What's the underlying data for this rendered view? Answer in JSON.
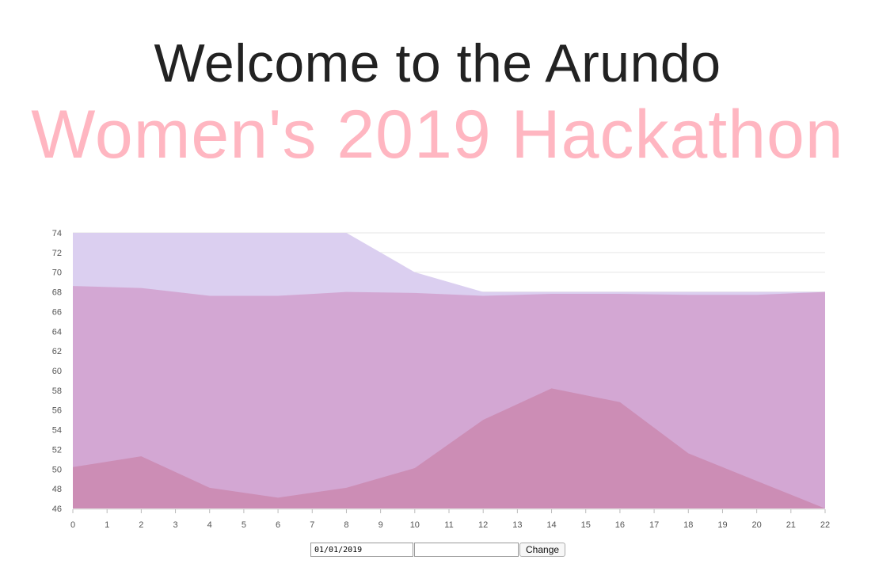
{
  "header": {
    "line1": "Welcome to the Arundo",
    "line2": "Women's 2019 Hackathon"
  },
  "colors": {
    "line1": "#222222",
    "line2": "#ffb6c1",
    "series_top": "#dbcff0",
    "series_mid": "#d3a7d3",
    "series_bottom": "#cc8db5",
    "grid": "#e6e6e6"
  },
  "chart_data": {
    "type": "area",
    "title": "",
    "xlabel": "",
    "ylabel": "",
    "xlim": [
      0,
      22
    ],
    "ylim": [
      46,
      74
    ],
    "x_ticks": [
      0,
      1,
      2,
      3,
      4,
      5,
      6,
      7,
      8,
      9,
      10,
      11,
      12,
      13,
      14,
      15,
      16,
      17,
      18,
      19,
      20,
      21,
      22
    ],
    "y_ticks": [
      46,
      48,
      50,
      52,
      54,
      56,
      58,
      60,
      62,
      64,
      66,
      68,
      70,
      72,
      74
    ],
    "grid": true,
    "legend": "none",
    "series": [
      {
        "color": "#dbcff0",
        "x": [
          0,
          2,
          4,
          6,
          8,
          10,
          12,
          14,
          16,
          18,
          20,
          22
        ],
        "values": [
          75,
          75,
          75,
          75,
          74,
          70,
          68,
          68,
          68,
          68,
          68,
          68
        ]
      },
      {
        "color": "#d3a7d3",
        "x": [
          0,
          2,
          4,
          6,
          8,
          10,
          12,
          14,
          16,
          18,
          20,
          22
        ],
        "values": [
          68.6,
          68.4,
          67.6,
          67.6,
          68.0,
          67.9,
          67.6,
          67.8,
          67.8,
          67.7,
          67.7,
          68.0
        ]
      },
      {
        "color": "#cc8db5",
        "x": [
          0,
          2,
          4,
          6,
          8,
          10,
          12,
          14,
          16,
          18,
          20,
          22
        ],
        "values": [
          50.2,
          51.3,
          48.1,
          47.1,
          48.1,
          50.1,
          55.0,
          58.2,
          56.8,
          51.6,
          48.8,
          46.0
        ]
      }
    ]
  },
  "controls": {
    "date_value": "01/01/2019",
    "text_value": "",
    "change_label": "Change"
  }
}
